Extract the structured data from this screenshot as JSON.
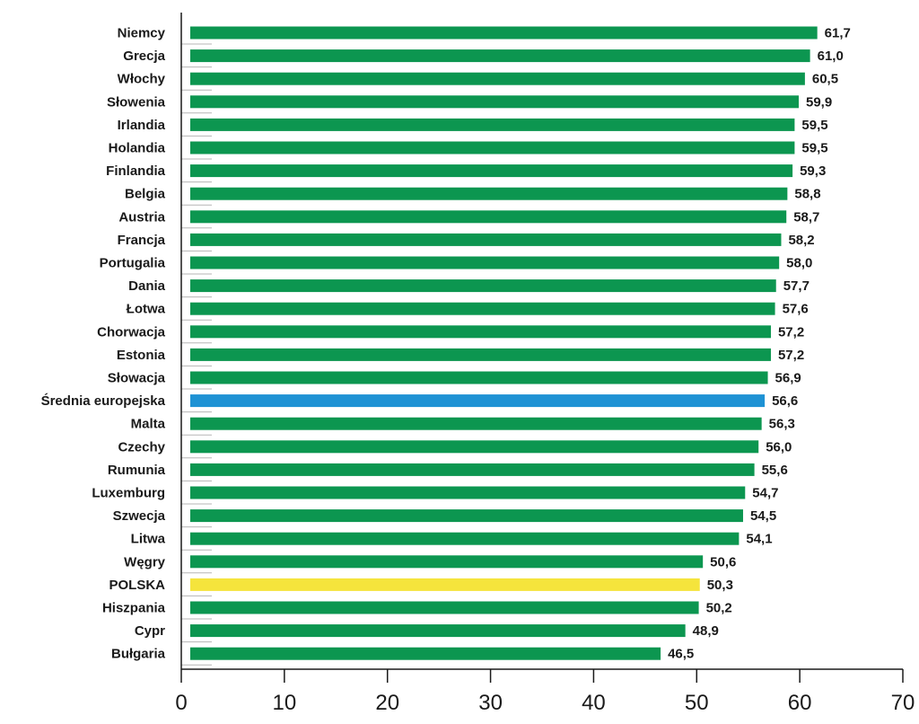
{
  "chart_data": {
    "type": "bar",
    "orientation": "horizontal",
    "categories": [
      "Niemcy",
      "Grecja",
      "Włochy",
      "Słowenia",
      "Irlandia",
      "Holandia",
      "Finlandia",
      "Belgia",
      "Austria",
      "Francja",
      "Portugalia",
      "Dania",
      "Łotwa",
      "Chorwacja",
      "Estonia",
      "Słowacja",
      "Średnia europejska",
      "Malta",
      "Czechy",
      "Rumunia",
      "Luxemburg",
      "Szwecja",
      "Litwa",
      "Węgry",
      "POLSKA",
      "Hiszpania",
      "Cypr",
      "Bułgaria"
    ],
    "values": [
      61.7,
      61.0,
      60.5,
      59.9,
      59.5,
      59.5,
      59.3,
      58.8,
      58.7,
      58.2,
      58.0,
      57.7,
      57.6,
      57.2,
      57.2,
      56.9,
      56.6,
      56.3,
      56.0,
      55.6,
      54.7,
      54.5,
      54.1,
      50.6,
      50.3,
      50.2,
      48.9,
      46.5
    ],
    "value_labels": [
      "61,7",
      "61,0",
      "60,5",
      "59,9",
      "59,5",
      "59,5",
      "59,3",
      "58,8",
      "58,7",
      "58,2",
      "58,0",
      "57,7",
      "57,6",
      "57,2",
      "57,2",
      "56,9",
      "56,6",
      "56,3",
      "56,0",
      "55,6",
      "54,7",
      "54,5",
      "54,1",
      "50,6",
      "50,3",
      "50,2",
      "48,9",
      "46,5"
    ],
    "xlim": [
      0,
      70
    ],
    "x_ticks": [
      "0",
      "10",
      "20",
      "30",
      "40",
      "50",
      "60",
      "70"
    ],
    "grid": false,
    "legend": "none",
    "colors": {
      "default_bar": "#0c9650",
      "european_average_bar": "#1e92d4",
      "european_average_label": "#2aa5de",
      "poland_bar": "#f5e43c",
      "poland_label": "#1b4a80",
      "text": "#1a1a1a"
    },
    "highlights": {
      "Średnia europejska": "european_average",
      "POLSKA": "poland"
    }
  }
}
